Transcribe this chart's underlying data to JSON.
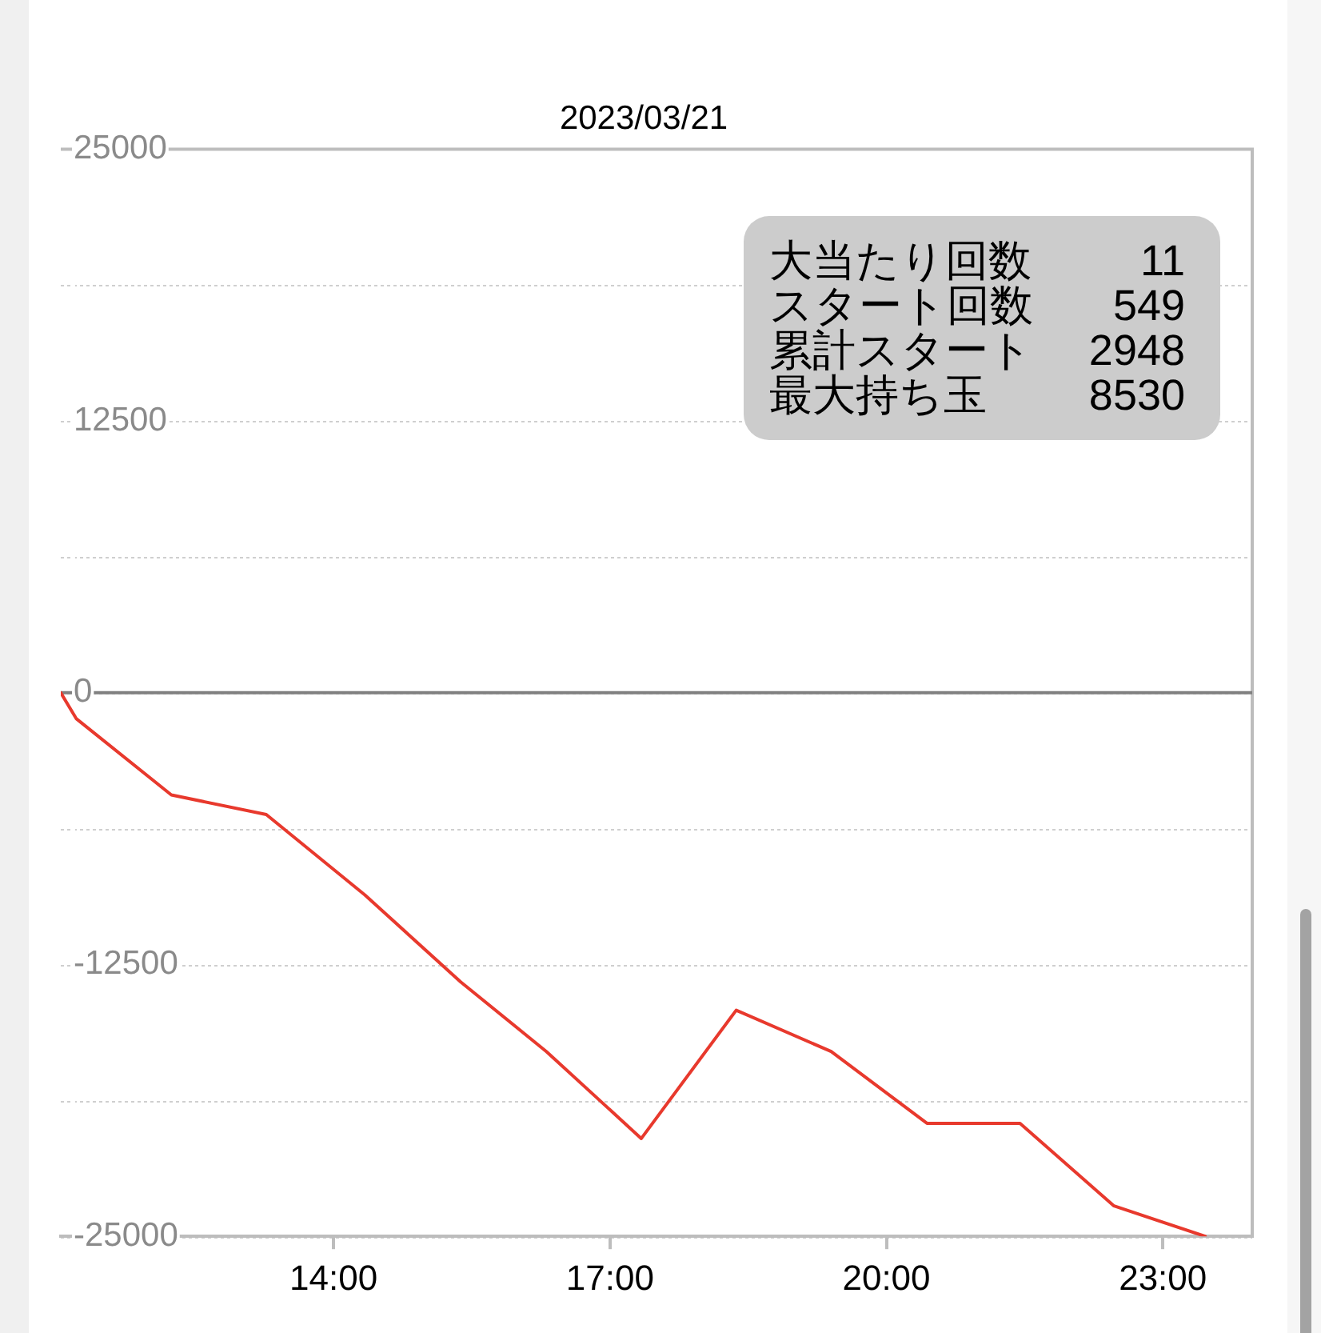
{
  "chart_data": {
    "type": "line",
    "title": "2023/03/21",
    "x": [
      11.04,
      11.21,
      12.24,
      13.27,
      14.34,
      15.38,
      16.31,
      17.34,
      18.37,
      19.4,
      20.44,
      21.45,
      22.47,
      23.46
    ],
    "series": [
      {
        "color": "#e8392d",
        "values": [
          0,
          -1200,
          -4700,
          -5600,
          -9300,
          -13300,
          -16500,
          -20500,
          -14600,
          -16500,
          -19800,
          -19800,
          -23600,
          -25000
        ]
      }
    ],
    "xlim": [
      11.04,
      23.97
    ],
    "xticks": [
      {
        "value": 14,
        "label": "14:00"
      },
      {
        "value": 17,
        "label": "17:00"
      },
      {
        "value": 20,
        "label": "20:00"
      },
      {
        "value": 23,
        "label": "23:00"
      }
    ],
    "ylim": [
      -25000,
      25000
    ],
    "yticks": [
      25000,
      {
        "value": 18750,
        "label": null
      },
      12500,
      {
        "value": 6250,
        "label": null
      },
      0,
      {
        "value": -6250,
        "label": null
      },
      -12500,
      {
        "value": -18750,
        "label": null
      },
      -25000
    ],
    "ref_lines": [
      {
        "axis": "y",
        "value": 0,
        "color": "#808080"
      }
    ],
    "grid": "y",
    "marker": "none",
    "annotations": [
      "大当たり回数",
      "11",
      "スタート回数",
      "549",
      "累計スタート",
      "2948",
      "最大持ち玉",
      "8530"
    ]
  }
}
